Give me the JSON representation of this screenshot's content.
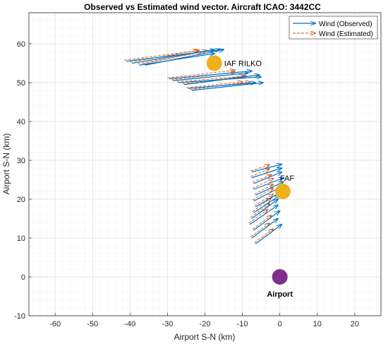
{
  "chart_data": {
    "type": "quiver",
    "title": "Observed vs Estimated wind vector. Aircraft ICAO: 3442CC",
    "xlabel": "Airport S-N (km)",
    "ylabel": "Airport S-N (km)",
    "xlim": [
      -67,
      27
    ],
    "ylim": [
      -10,
      68
    ],
    "xticks": [
      -60,
      -50,
      -40,
      -30,
      -20,
      -10,
      0,
      10,
      20
    ],
    "yticks": [
      -10,
      0,
      10,
      20,
      30,
      40,
      50,
      60
    ],
    "grid": "on (major and minor)",
    "legend_position": "top-right",
    "series": [
      {
        "name": "Wind (Observed)",
        "style": "solid arrows",
        "color": "#0072BD"
      },
      {
        "name": "Wind (Estimated)",
        "style": "dashed arrows",
        "color": "#EDB120"
      }
    ],
    "observed_vectors": [
      {
        "x": -41.0,
        "y": 55.5,
        "dx": 25.0,
        "dy": 3.0
      },
      {
        "x": -39.5,
        "y": 55.0,
        "dx": 22.0,
        "dy": 3.5
      },
      {
        "x": -37.5,
        "y": 54.5,
        "dx": 20.0,
        "dy": 3.0
      },
      {
        "x": -36.0,
        "y": 54.5,
        "dx": 21.0,
        "dy": 4.0
      },
      {
        "x": -29.5,
        "y": 51.0,
        "dx": 22.0,
        "dy": 2.0
      },
      {
        "x": -28.5,
        "y": 50.5,
        "dx": 20.0,
        "dy": 2.0
      },
      {
        "x": -27.0,
        "y": 50.0,
        "dx": 22.0,
        "dy": 1.5
      },
      {
        "x": -25.5,
        "y": 49.5,
        "dx": 20.0,
        "dy": 2.5
      },
      {
        "x": -24.5,
        "y": 48.5,
        "dx": 18.0,
        "dy": 1.5
      },
      {
        "x": -23.5,
        "y": 48.0,
        "dx": 19.0,
        "dy": 2.0
      },
      {
        "x": -7.5,
        "y": 27.0,
        "dx": 8.0,
        "dy": 2.0
      },
      {
        "x": -7.5,
        "y": 25.5,
        "dx": 8.0,
        "dy": 2.5
      },
      {
        "x": -7.0,
        "y": 24.0,
        "dx": 7.5,
        "dy": 3.0
      },
      {
        "x": -7.0,
        "y": 22.5,
        "dx": 8.0,
        "dy": 3.0
      },
      {
        "x": -6.5,
        "y": 21.0,
        "dx": 7.5,
        "dy": 3.5
      },
      {
        "x": -7.0,
        "y": 19.5,
        "dx": 8.0,
        "dy": 4.0
      },
      {
        "x": -6.5,
        "y": 18.0,
        "dx": 7.0,
        "dy": 4.0
      },
      {
        "x": -7.0,
        "y": 16.5,
        "dx": 7.0,
        "dy": 4.5
      },
      {
        "x": -7.5,
        "y": 15.0,
        "dx": 7.0,
        "dy": 5.0
      },
      {
        "x": -8.0,
        "y": 13.5,
        "dx": 7.5,
        "dy": 5.0
      },
      {
        "x": -7.0,
        "y": 12.0,
        "dx": 7.0,
        "dy": 5.0
      },
      {
        "x": -7.5,
        "y": 10.0,
        "dx": 7.0,
        "dy": 5.0
      },
      {
        "x": -6.5,
        "y": 8.5,
        "dx": 7.0,
        "dy": 5.0
      }
    ],
    "estimated_vectors": [
      {
        "x": -41.5,
        "y": 55.8,
        "dx": 20.0,
        "dy": 2.5
      },
      {
        "x": -40.0,
        "y": 55.3,
        "dx": 18.0,
        "dy": 3.0
      },
      {
        "x": -38.0,
        "y": 54.8,
        "dx": 17.0,
        "dy": 3.0
      },
      {
        "x": -36.5,
        "y": 54.8,
        "dx": 17.0,
        "dy": 3.5
      },
      {
        "x": -30.0,
        "y": 51.2,
        "dx": 18.0,
        "dy": 2.0
      },
      {
        "x": -29.0,
        "y": 50.7,
        "dx": 17.0,
        "dy": 2.0
      },
      {
        "x": -27.5,
        "y": 50.2,
        "dx": 18.0,
        "dy": 1.5
      },
      {
        "x": -26.0,
        "y": 49.7,
        "dx": 17.0,
        "dy": 2.0
      },
      {
        "x": -25.0,
        "y": 48.7,
        "dx": 15.0,
        "dy": 1.5
      },
      {
        "x": -24.0,
        "y": 48.2,
        "dx": 16.0,
        "dy": 2.0
      },
      {
        "x": -7.8,
        "y": 27.3,
        "dx": 5.0,
        "dy": 1.5
      },
      {
        "x": -7.8,
        "y": 25.8,
        "dx": 5.0,
        "dy": 2.0
      },
      {
        "x": -7.3,
        "y": 24.3,
        "dx": 5.0,
        "dy": 2.0
      },
      {
        "x": -7.3,
        "y": 22.8,
        "dx": 5.5,
        "dy": 2.5
      },
      {
        "x": -6.8,
        "y": 21.3,
        "dx": 5.0,
        "dy": 2.5
      },
      {
        "x": -7.3,
        "y": 19.8,
        "dx": 5.5,
        "dy": 3.0
      },
      {
        "x": -6.8,
        "y": 18.3,
        "dx": 5.0,
        "dy": 3.0
      },
      {
        "x": -7.3,
        "y": 16.8,
        "dx": 5.0,
        "dy": 3.5
      },
      {
        "x": -7.8,
        "y": 15.3,
        "dx": 5.0,
        "dy": 3.5
      },
      {
        "x": -8.3,
        "y": 13.8,
        "dx": 5.0,
        "dy": 3.5
      },
      {
        "x": -7.3,
        "y": 12.3,
        "dx": 5.0,
        "dy": 3.5
      },
      {
        "x": -7.8,
        "y": 10.3,
        "dx": 5.0,
        "dy": 3.5
      },
      {
        "x": -6.8,
        "y": 8.8,
        "dx": 5.0,
        "dy": 3.5
      }
    ],
    "points": [
      {
        "label": "IAF RILKO",
        "x": -17.5,
        "y": 55.0,
        "color": "#EDB120"
      },
      {
        "label": "FAF",
        "x": 0.8,
        "y": 22.0,
        "color": "#EDB120"
      },
      {
        "label": "Airport",
        "x": 0.0,
        "y": 0.0,
        "color": "#7E2F8E"
      }
    ]
  }
}
